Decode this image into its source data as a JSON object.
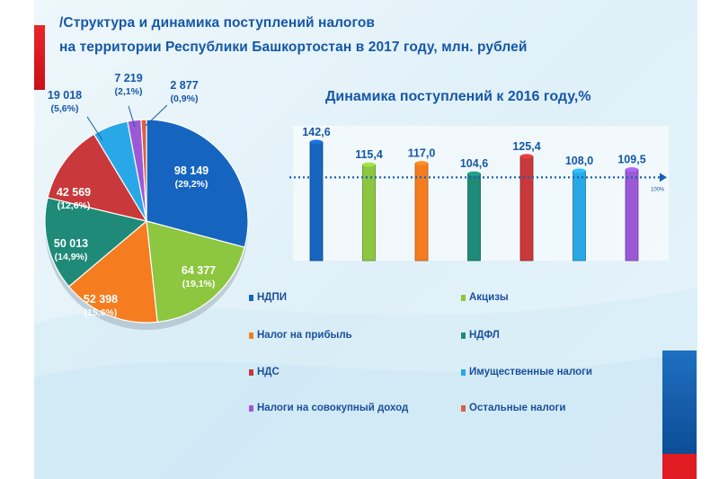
{
  "title": {
    "line1": "/Структура и динамика поступлений налогов",
    "line2": "на территории Республики Башкортостан в 2017 году, млн. рублей"
  },
  "chart_data": [
    {
      "type": "pie",
      "unit": "млн. рублей",
      "slices": [
        {
          "name": "НДПИ",
          "value": 98149,
          "value_label": "98 149",
          "percent_label": "(29,2%)",
          "color": "#1565c0"
        },
        {
          "name": "Акцизы",
          "value": 64377,
          "value_label": "64 377",
          "percent_label": "(19,1%)",
          "color": "#8dc63f"
        },
        {
          "name": "Налог на прибыль",
          "value": 52398,
          "value_label": "52 398",
          "percent_label": "(15,6%)",
          "color": "#f57c1f"
        },
        {
          "name": "НДФЛ",
          "value": 50013,
          "value_label": "50 013",
          "percent_label": "(14,9%)",
          "color": "#1f8a78"
        },
        {
          "name": "НДС",
          "value": 42569,
          "value_label": "42 569",
          "percent_label": "(12,6%)",
          "color": "#c9383a"
        },
        {
          "name": "Имущественные  налоги",
          "value": 19018,
          "value_label": "19 018",
          "percent_label": "(5,6%)",
          "color": "#29a8e8"
        },
        {
          "name": "Налоги на совокупный  доход",
          "value": 7219,
          "value_label": "7 219",
          "percent_label": "(2,1%)",
          "color": "#9b59d6"
        },
        {
          "name": "Остальные  налоги",
          "value": 2877,
          "value_label": "2 877",
          "percent_label": "(0,9%)",
          "color": "#d9603f"
        }
      ]
    },
    {
      "type": "bar",
      "title": "Динамика поступлений к 2016 году,%",
      "categories": [
        "НДПИ",
        "Акцизы",
        "Налог на прибыль",
        "НДФЛ",
        "НДС",
        "Имущественные  налоги",
        "Налоги на совокупный  доход"
      ],
      "values": [
        142.6,
        115.4,
        117.0,
        104.6,
        125.4,
        108.0,
        109.5
      ],
      "value_labels": [
        "142,6",
        "115,4",
        "117,0",
        "104,6",
        "125,4",
        "108,0",
        "109,5"
      ],
      "colors": [
        "#1565c0",
        "#8dc63f",
        "#f57c1f",
        "#1f8a78",
        "#c9383a",
        "#29a8e8",
        "#9b59d6"
      ],
      "reference_line": {
        "value": 100,
        "label": "100%"
      },
      "ylim": [
        0,
        142.6
      ]
    }
  ],
  "legend": [
    {
      "label": "НДПИ",
      "color": "#1565c0"
    },
    {
      "label": "Акцизы",
      "color": "#8dc63f"
    },
    {
      "label": "Налог на прибыль",
      "color": "#f57c1f"
    },
    {
      "label": "НДФЛ",
      "color": "#1f8a78"
    },
    {
      "label": "НДС",
      "color": "#c9383a"
    },
    {
      "label": "Имущественные  налоги",
      "color": "#29a8e8"
    },
    {
      "label": "Налоги на совокупный  доход",
      "color": "#9b59d6"
    },
    {
      "label": "Остальные  налоги",
      "color": "#d9603f"
    }
  ]
}
